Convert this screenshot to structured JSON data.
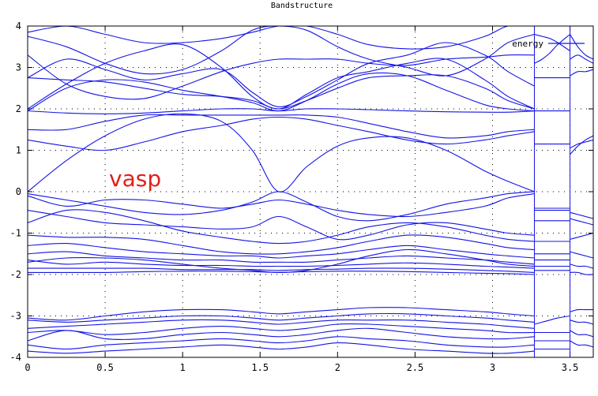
{
  "chart_data": {
    "type": "line",
    "title": "Bandstructure",
    "xlabel": "",
    "ylabel": "",
    "xlim": [
      0,
      3.65
    ],
    "ylim": [
      -4,
      4
    ],
    "x_tick_labels": [
      "0",
      "0.5",
      "1",
      "1.5",
      "2",
      "2.5",
      "3",
      "3.5"
    ],
    "x_ticks": [
      0,
      0.5,
      1,
      1.5,
      2,
      2.5,
      3,
      3.5
    ],
    "y_tick_labels": [
      "-4",
      "-3",
      "-2",
      "-1",
      "0",
      "1",
      "2",
      "3",
      "4"
    ],
    "y_ticks": [
      -4,
      -3,
      -2,
      -1,
      0,
      1,
      2,
      3,
      4
    ],
    "grid": true,
    "legend": {
      "entries": [
        "energy"
      ],
      "position": "top-right"
    },
    "annotation": {
      "text": "vasp",
      "color": "#e0201b"
    },
    "line_color": "#1414e6",
    "segments": [
      {
        "x": [
          0,
          0.25,
          0.5,
          0.75,
          1.0,
          1.25,
          1.45,
          1.62,
          1.8,
          2.0,
          2.2,
          2.45,
          2.7,
          2.95,
          3.1,
          3.27
        ],
        "series": [
          {
            "name": "energy",
            "values": [
              0.0,
              0.75,
              1.35,
              1.75,
              1.88,
              1.7,
              1.0,
              0.0,
              0.6,
              1.1,
              1.3,
              1.3,
              1.0,
              0.5,
              0.25,
              0.0
            ]
          },
          {
            "name": "energy",
            "values": [
              1.25,
              1.1,
              1.0,
              1.2,
              1.45,
              1.6,
              1.75,
              1.8,
              1.75,
              1.6,
              1.45,
              1.25,
              1.15,
              1.25,
              1.35,
              1.45
            ]
          },
          {
            "name": "energy",
            "values": [
              1.5,
              1.5,
              1.7,
              1.85,
              1.85,
              1.85,
              1.85,
              1.85,
              1.85,
              1.8,
              1.65,
              1.45,
              1.3,
              1.35,
              1.45,
              1.5
            ]
          },
          {
            "name": "energy",
            "values": [
              1.95,
              1.9,
              1.88,
              1.9,
              1.95,
              2.0,
              2.0,
              1.95,
              2.0,
              2.0,
              1.98,
              1.95,
              1.93,
              1.92,
              1.92,
              1.95
            ]
          },
          {
            "name": "energy",
            "values": [
              1.95,
              2.5,
              2.7,
              2.65,
              2.45,
              2.3,
              2.15,
              1.95,
              2.2,
              2.6,
              2.85,
              2.8,
              2.45,
              2.1,
              2.0,
              1.95
            ]
          },
          {
            "name": "energy",
            "values": [
              2.0,
              2.6,
              3.1,
              3.4,
              3.55,
              3.0,
              2.3,
              2.0,
              2.35,
              2.75,
              2.9,
              3.1,
              3.2,
              2.7,
              2.3,
              2.0
            ]
          },
          {
            "name": "energy",
            "values": [
              2.75,
              2.7,
              2.65,
              2.5,
              2.35,
              2.3,
              2.2,
              2.0,
              2.2,
              2.5,
              2.75,
              2.8,
              2.8,
              2.5,
              2.2,
              2.0
            ]
          },
          {
            "name": "energy",
            "values": [
              2.75,
              3.2,
              2.95,
              2.7,
              2.85,
              2.95,
              2.4,
              2.05,
              2.3,
              2.7,
              3.1,
              3.3,
              3.6,
              3.3,
              2.9,
              2.55
            ]
          },
          {
            "name": "energy",
            "values": [
              3.3,
              2.6,
              2.3,
              2.25,
              2.55,
              2.9,
              3.1,
              3.2,
              3.2,
              3.2,
              3.1,
              3.05,
              3.2,
              3.25,
              3.3,
              3.3
            ]
          },
          {
            "name": "energy",
            "values": [
              3.75,
              3.5,
              3.1,
              2.85,
              2.95,
              3.4,
              3.9,
              4.0,
              3.9,
              3.5,
              3.2,
              3.0,
              2.8,
              3.2,
              3.6,
              3.8
            ]
          },
          {
            "name": "energy",
            "values": [
              3.85,
              4.0,
              3.8,
              3.6,
              3.6,
              3.7,
              3.85,
              4.0,
              4.0,
              3.8,
              3.55,
              3.45,
              3.5,
              3.75,
              4.0,
              4.0
            ]
          },
          {
            "name": "energy",
            "values": [
              -0.05,
              -0.2,
              -0.35,
              -0.5,
              -0.55,
              -0.45,
              -0.25,
              0.0,
              -0.25,
              -0.6,
              -0.7,
              -0.55,
              -0.3,
              -0.15,
              -0.05,
              0.0
            ]
          },
          {
            "name": "energy",
            "values": [
              -0.1,
              -0.35,
              -0.2,
              -0.2,
              -0.3,
              -0.4,
              -0.3,
              -0.2,
              -0.3,
              -0.45,
              -0.55,
              -0.6,
              -0.5,
              -0.35,
              -0.15,
              -0.05
            ]
          },
          {
            "name": "energy",
            "values": [
              -0.45,
              -0.6,
              -0.75,
              -0.8,
              -0.85,
              -0.9,
              -0.85,
              -0.6,
              -0.85,
              -1.15,
              -1.05,
              -0.8,
              -0.75,
              -0.9,
              -1.0,
              -1.05
            ]
          },
          {
            "name": "energy",
            "values": [
              -0.75,
              -0.45,
              -0.5,
              -0.7,
              -0.95,
              -1.1,
              -1.2,
              -1.25,
              -1.2,
              -1.05,
              -0.85,
              -0.75,
              -0.85,
              -1.05,
              -1.15,
              -1.2
            ]
          },
          {
            "name": "energy",
            "values": [
              -1.05,
              -1.1,
              -1.1,
              -1.15,
              -1.3,
              -1.45,
              -1.5,
              -1.5,
              -1.45,
              -1.35,
              -1.2,
              -1.05,
              -1.1,
              -1.25,
              -1.35,
              -1.4
            ]
          },
          {
            "name": "energy",
            "values": [
              -1.3,
              -1.25,
              -1.35,
              -1.45,
              -1.5,
              -1.55,
              -1.55,
              -1.6,
              -1.55,
              -1.5,
              -1.4,
              -1.3,
              -1.4,
              -1.5,
              -1.55,
              -1.6
            ]
          },
          {
            "name": "energy",
            "values": [
              -1.5,
              -1.45,
              -1.55,
              -1.6,
              -1.65,
              -1.65,
              -1.7,
              -1.7,
              -1.7,
              -1.65,
              -1.6,
              -1.55,
              -1.6,
              -1.65,
              -1.7,
              -1.75
            ]
          },
          {
            "name": "energy",
            "values": [
              -1.65,
              -1.75,
              -1.7,
              -1.75,
              -1.78,
              -1.78,
              -1.8,
              -1.8,
              -1.8,
              -1.78,
              -1.75,
              -1.72,
              -1.75,
              -1.8,
              -1.82,
              -1.85
            ]
          },
          {
            "name": "energy",
            "values": [
              -1.85,
              -1.85,
              -1.85,
              -1.85,
              -1.88,
              -1.88,
              -1.88,
              -1.9,
              -1.88,
              -1.87,
              -1.85,
              -1.85,
              -1.87,
              -1.9,
              -1.92,
              -1.95
            ]
          },
          {
            "name": "energy",
            "values": [
              -1.95,
              -1.95,
              -1.95,
              -1.93,
              -1.92,
              -1.92,
              -1.93,
              -1.95,
              -1.93,
              -1.92,
              -1.92,
              -1.93,
              -1.95,
              -1.97,
              -1.98,
              -2.0
            ]
          },
          {
            "name": "energy",
            "values": [
              -1.7,
              -1.6,
              -1.6,
              -1.65,
              -1.75,
              -1.85,
              -1.9,
              -1.95,
              -1.9,
              -1.75,
              -1.55,
              -1.4,
              -1.5,
              -1.65,
              -1.75,
              -1.8
            ]
          },
          {
            "name": "energy",
            "values": [
              -3.05,
              -3.1,
              -3.0,
              -2.9,
              -2.85,
              -2.85,
              -2.9,
              -2.95,
              -2.9,
              -2.85,
              -2.8,
              -2.8,
              -2.85,
              -2.9,
              -2.95,
              -3.0
            ]
          },
          {
            "name": "energy",
            "values": [
              -3.1,
              -3.15,
              -3.1,
              -3.05,
              -3.0,
              -3.0,
              -3.05,
              -3.1,
              -3.05,
              -3.0,
              -2.95,
              -2.95,
              -3.0,
              -3.05,
              -3.1,
              -3.15
            ]
          },
          {
            "name": "energy",
            "values": [
              -3.3,
              -3.25,
              -3.2,
              -3.15,
              -3.1,
              -3.1,
              -3.15,
              -3.2,
              -3.15,
              -3.1,
              -3.1,
              -3.1,
              -3.15,
              -3.2,
              -3.25,
              -3.3
            ]
          },
          {
            "name": "energy",
            "values": [
              -3.4,
              -3.35,
              -3.45,
              -3.4,
              -3.3,
              -3.25,
              -3.3,
              -3.35,
              -3.3,
              -3.2,
              -3.2,
              -3.25,
              -3.3,
              -3.35,
              -3.4,
              -3.4
            ]
          },
          {
            "name": "energy",
            "values": [
              -3.6,
              -3.35,
              -3.55,
              -3.55,
              -3.45,
              -3.4,
              -3.45,
              -3.5,
              -3.45,
              -3.35,
              -3.3,
              -3.4,
              -3.5,
              -3.55,
              -3.55,
              -3.5
            ]
          },
          {
            "name": "energy",
            "values": [
              -3.7,
              -3.8,
              -3.7,
              -3.65,
              -3.6,
              -3.55,
              -3.6,
              -3.65,
              -3.6,
              -3.5,
              -3.55,
              -3.6,
              -3.7,
              -3.75,
              -3.75,
              -3.7
            ]
          },
          {
            "name": "energy",
            "values": [
              -3.85,
              -3.9,
              -3.85,
              -3.8,
              -3.75,
              -3.7,
              -3.75,
              -3.8,
              -3.75,
              -3.65,
              -3.7,
              -3.8,
              -3.85,
              -3.9,
              -3.9,
              -3.85
            ]
          }
        ]
      },
      {
        "x": [
          3.27,
          3.32,
          3.37,
          3.42,
          3.5
        ],
        "series": [
          {
            "name": "energy",
            "values": [
              -0.4,
              -0.4,
              -0.4,
              -0.4,
              -0.4
            ]
          },
          {
            "name": "energy",
            "values": [
              -0.45,
              -0.45,
              -0.45,
              -0.45,
              -0.45
            ]
          },
          {
            "name": "energy",
            "values": [
              -0.7,
              -0.7,
              -0.7,
              -0.7,
              -0.7
            ]
          },
          {
            "name": "energy",
            "values": [
              -1.2,
              -1.2,
              -1.2,
              -1.2,
              -1.2
            ]
          },
          {
            "name": "energy",
            "values": [
              -1.5,
              -1.5,
              -1.5,
              -1.5,
              -1.5
            ]
          },
          {
            "name": "energy",
            "values": [
              -1.65,
              -1.65,
              -1.65,
              -1.65,
              -1.65
            ]
          },
          {
            "name": "energy",
            "values": [
              -1.8,
              -1.8,
              -1.8,
              -1.8,
              -1.8
            ]
          },
          {
            "name": "energy",
            "values": [
              -1.9,
              -1.9,
              -1.9,
              -1.9,
              -1.9
            ]
          },
          {
            "name": "energy",
            "values": [
              1.15,
              1.15,
              1.15,
              1.15,
              1.15
            ]
          },
          {
            "name": "energy",
            "values": [
              1.95,
              1.95,
              1.95,
              1.95,
              1.95
            ]
          },
          {
            "name": "energy",
            "values": [
              2.75,
              2.75,
              2.75,
              2.75,
              2.75
            ]
          },
          {
            "name": "energy",
            "values": [
              3.1,
              3.2,
              3.35,
              3.55,
              3.8
            ]
          },
          {
            "name": "energy",
            "values": [
              3.8,
              3.75,
              3.7,
              3.6,
              3.4
            ]
          },
          {
            "name": "energy",
            "values": [
              -3.2,
              -3.15,
              -3.1,
              -3.05,
              -3.0
            ]
          },
          {
            "name": "energy",
            "values": [
              -3.4,
              -3.4,
              -3.4,
              -3.4,
              -3.4
            ]
          },
          {
            "name": "energy",
            "values": [
              -3.6,
              -3.6,
              -3.6,
              -3.6,
              -3.6
            ]
          },
          {
            "name": "energy",
            "values": [
              -3.8,
              -3.8,
              -3.8,
              -3.8,
              -3.8
            ]
          }
        ]
      },
      {
        "x": [
          3.5,
          3.55,
          3.6,
          3.65
        ],
        "series": [
          {
            "name": "energy",
            "values": [
              -0.5,
              -0.55,
              -0.6,
              -0.65
            ]
          },
          {
            "name": "energy",
            "values": [
              -0.65,
              -0.7,
              -0.75,
              -0.8
            ]
          },
          {
            "name": "energy",
            "values": [
              -1.15,
              -1.1,
              -1.05,
              -1.0
            ]
          },
          {
            "name": "energy",
            "values": [
              -1.45,
              -1.5,
              -1.55,
              -1.6
            ]
          },
          {
            "name": "energy",
            "values": [
              -1.75,
              -1.8,
              -1.8,
              -1.85
            ]
          },
          {
            "name": "energy",
            "values": [
              -1.95,
              -1.95,
              -2.0,
              -2.0
            ]
          },
          {
            "name": "energy",
            "values": [
              0.9,
              1.1,
              1.25,
              1.35
            ]
          },
          {
            "name": "energy",
            "values": [
              1.05,
              1.15,
              1.2,
              1.25
            ]
          },
          {
            "name": "energy",
            "values": [
              2.8,
              2.9,
              2.9,
              2.95
            ]
          },
          {
            "name": "energy",
            "values": [
              3.2,
              3.3,
              3.2,
              3.1
            ]
          },
          {
            "name": "energy",
            "values": [
              3.8,
              3.5,
              3.3,
              3.2
            ]
          },
          {
            "name": "energy",
            "values": [
              -2.9,
              -2.85,
              -2.85,
              -2.85
            ]
          },
          {
            "name": "energy",
            "values": [
              -3.1,
              -3.15,
              -3.15,
              -3.2
            ]
          },
          {
            "name": "energy",
            "values": [
              -3.35,
              -3.45,
              -3.45,
              -3.5
            ]
          },
          {
            "name": "energy",
            "values": [
              -3.6,
              -3.7,
              -3.7,
              -3.75
            ]
          }
        ]
      }
    ]
  }
}
